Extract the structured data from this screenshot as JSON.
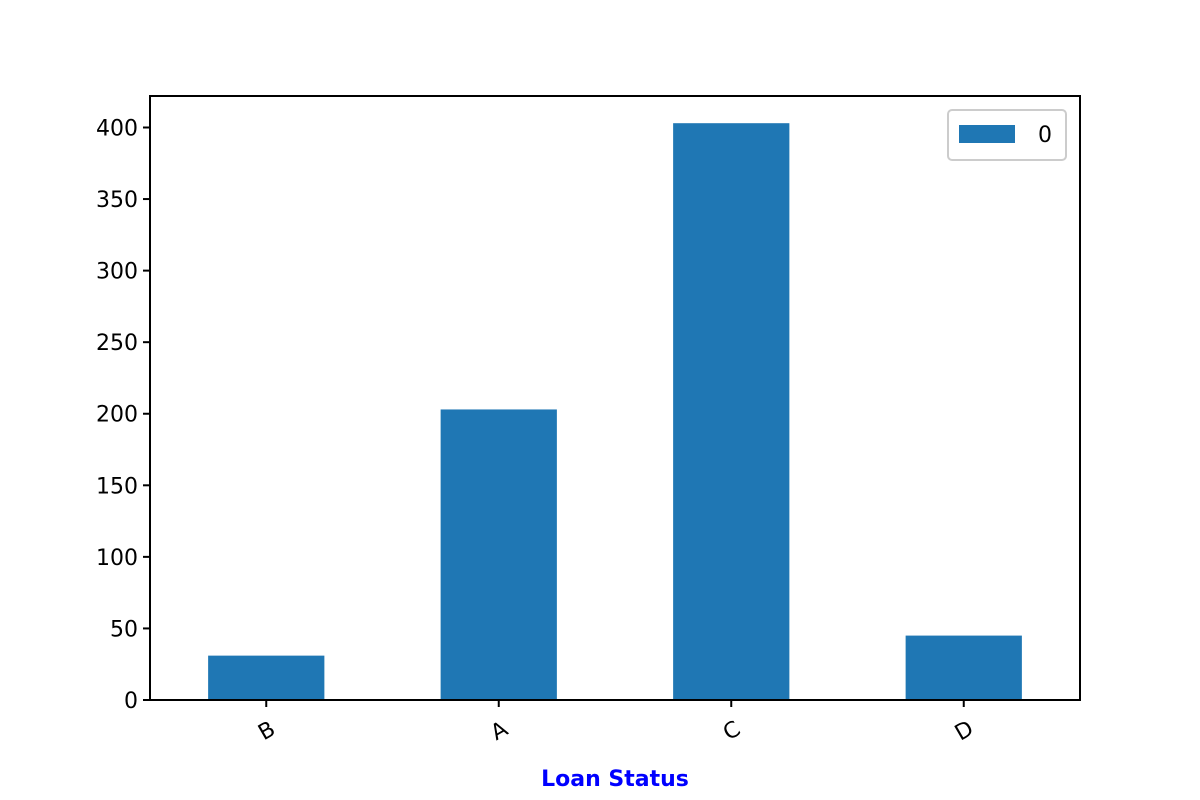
{
  "chart_data": {
    "type": "bar",
    "title": "",
    "xlabel": "Loan Status",
    "ylabel": "",
    "categories": [
      "B",
      "A",
      "C",
      "D"
    ],
    "series": [
      {
        "name": "0",
        "values": [
          31,
          203,
          403,
          45
        ]
      }
    ],
    "ylim": [
      0,
      422
    ],
    "yticks": [
      0,
      50,
      100,
      150,
      200,
      250,
      300,
      350,
      400
    ],
    "ytick_labels": [
      "0",
      "50",
      "100",
      "150",
      "200",
      "250",
      "300",
      "350",
      "400"
    ],
    "grid": false,
    "legend_position": "top-right",
    "xtick_rotation": "30 degrees",
    "bar_color": "#1f77b4",
    "xlabel_color": "#0000ff"
  }
}
